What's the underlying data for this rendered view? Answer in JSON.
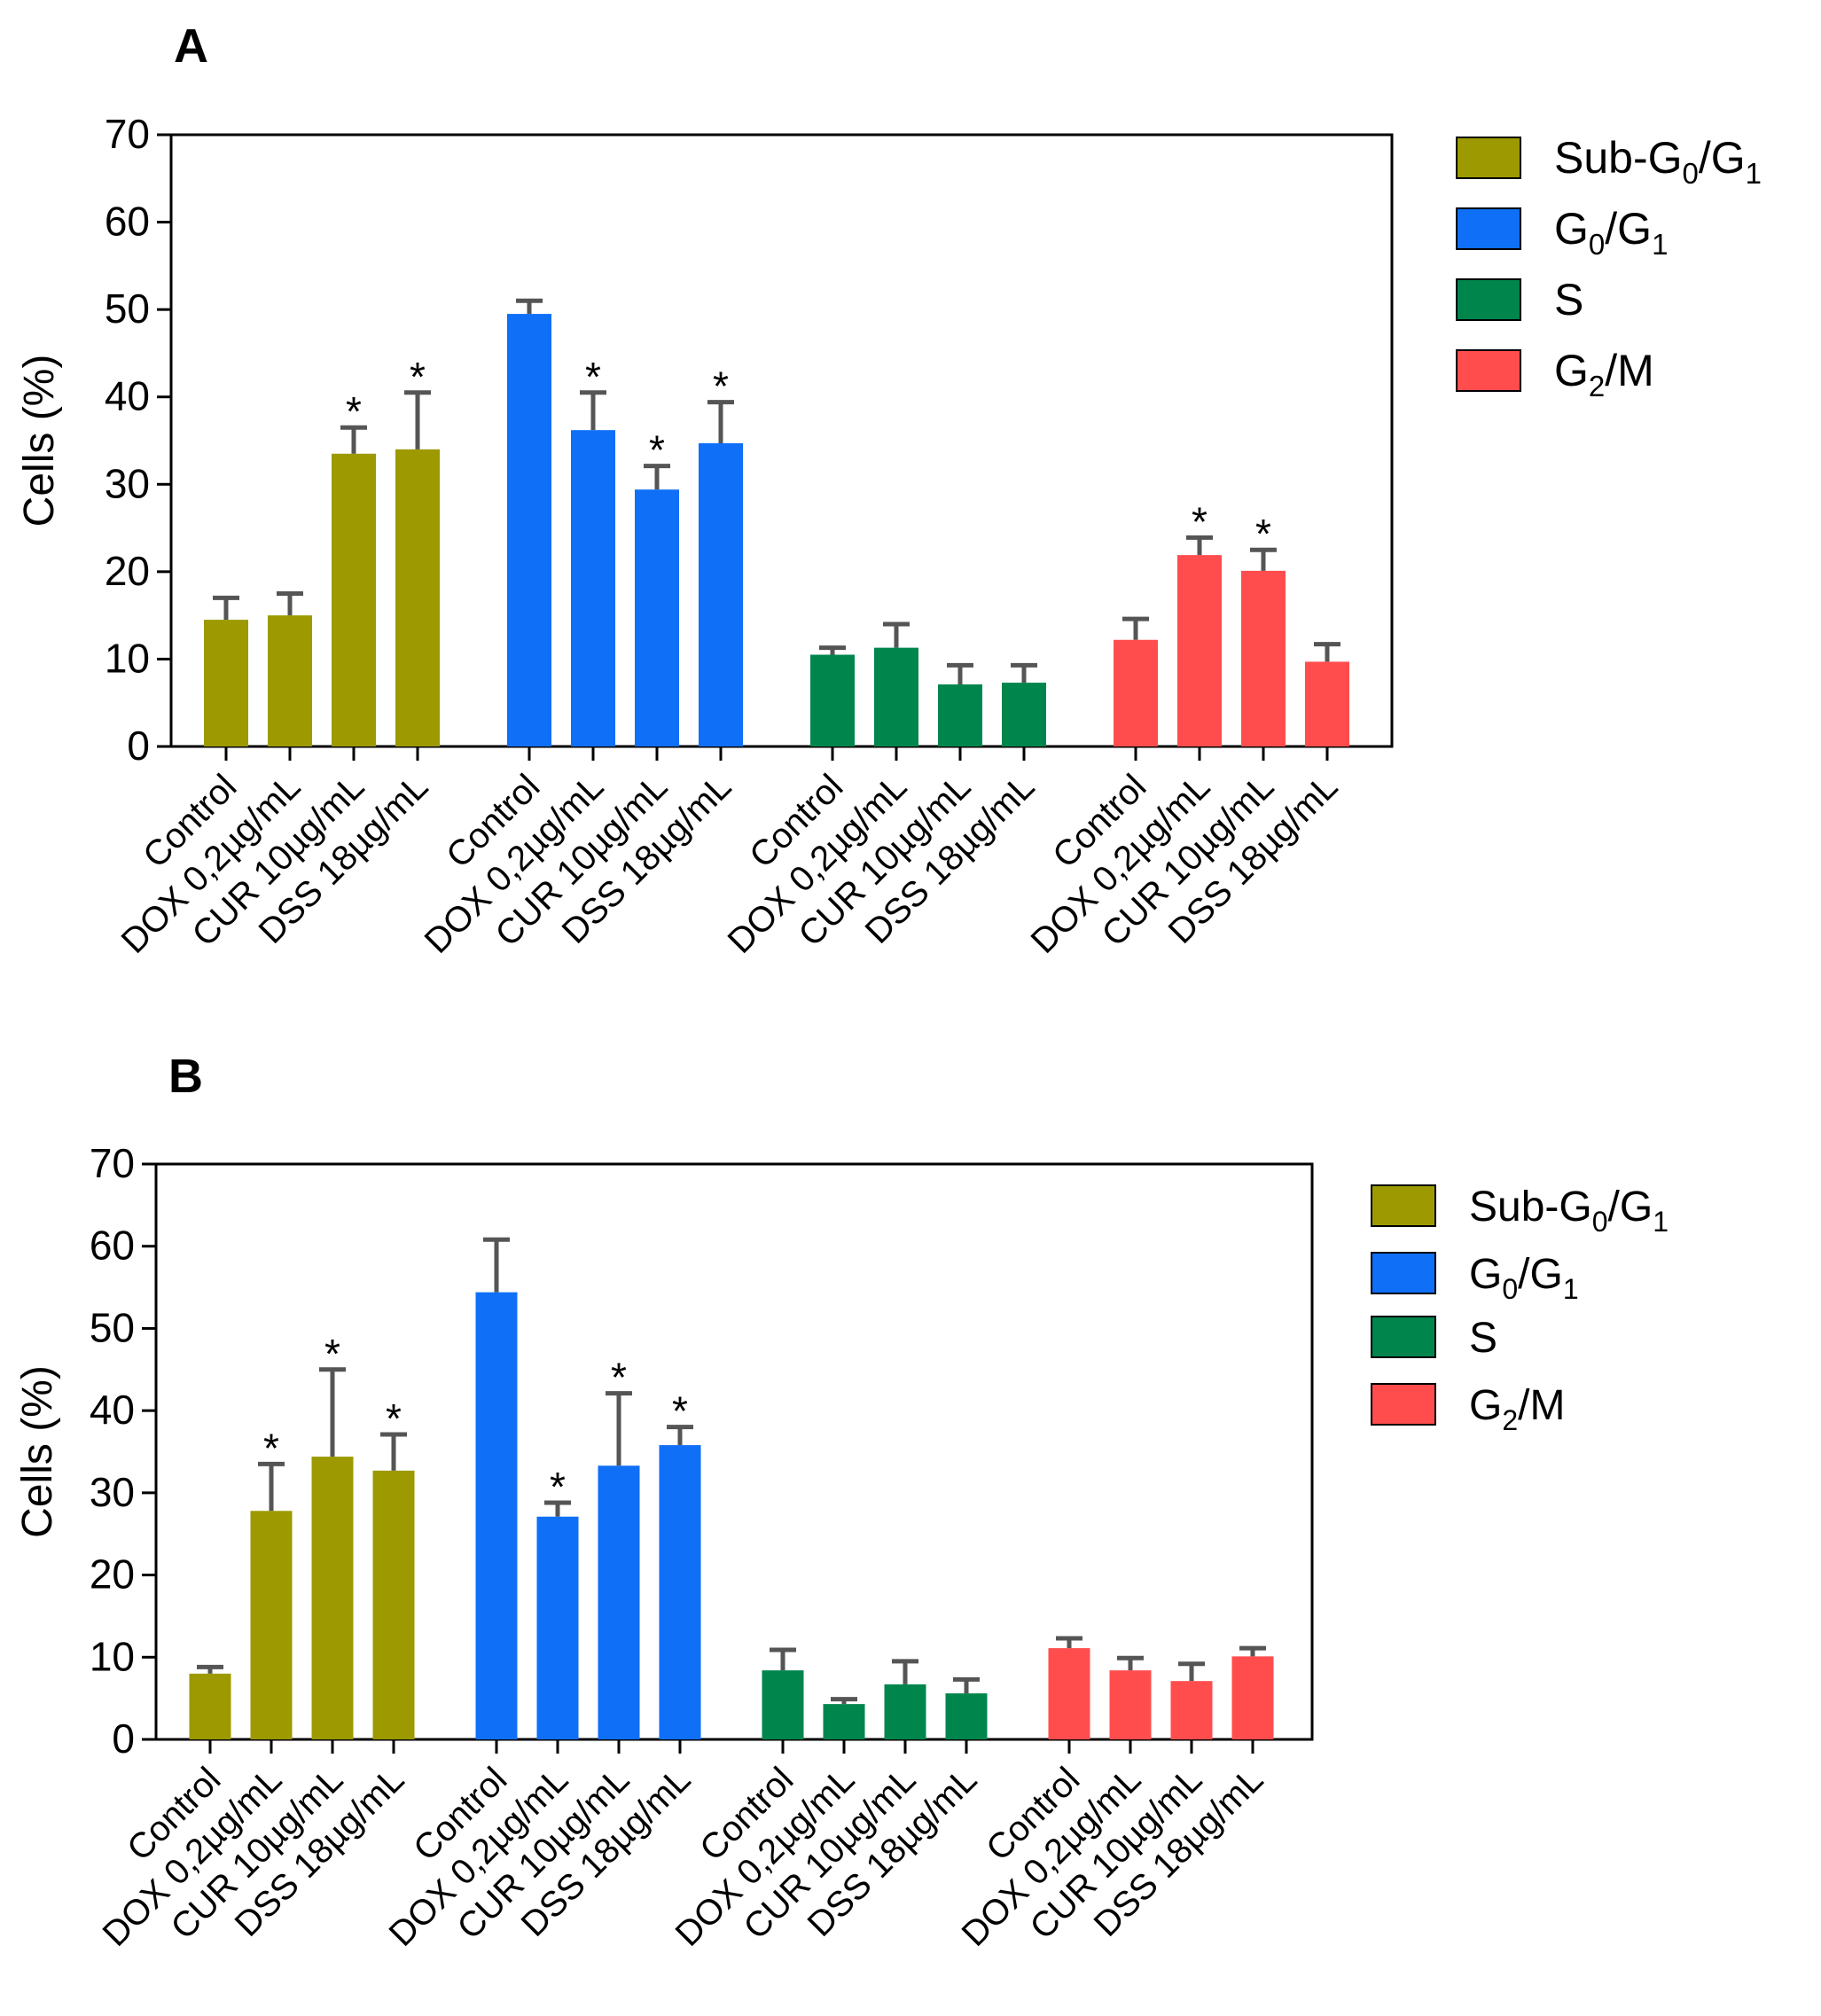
{
  "chart_data": [
    {
      "type": "bar",
      "panel_label": "A",
      "title": "",
      "xlabel": "",
      "ylabel": "Cells (%)",
      "ylim": [
        0,
        70
      ],
      "yticks": [
        0,
        10,
        20,
        30,
        40,
        50,
        60,
        70
      ],
      "grid": false,
      "legend_position": "right",
      "categories": [
        "Control",
        "DOX 0,2µg/mL",
        "CUR 10µg/mL",
        "DSS 18µg/mL"
      ],
      "series": [
        {
          "name": "Sub-G0/G1",
          "label_main": "Sub-G",
          "sub0": "0",
          "label_slash": "/G",
          "sub1": "1",
          "color": "#9c9a00",
          "values": [
            14.5,
            15.0,
            33.5,
            34.0
          ],
          "errors": [
            2.5,
            2.5,
            3.0,
            6.5
          ],
          "significant": [
            false,
            false,
            true,
            true
          ]
        },
        {
          "name": "G0/G1",
          "label_main": "G",
          "sub0": "0",
          "label_slash": "/G",
          "sub1": "1",
          "color": "#0f6ff7",
          "values": [
            49.5,
            36.2,
            29.4,
            34.7
          ],
          "errors": [
            1.5,
            4.3,
            2.7,
            4.7
          ],
          "significant": [
            false,
            true,
            true,
            true
          ]
        },
        {
          "name": "S",
          "label_main": "S",
          "sub0": "",
          "label_slash": "",
          "sub1": "",
          "color": "#00864d",
          "values": [
            10.5,
            11.3,
            7.1,
            7.3
          ],
          "errors": [
            0.8,
            2.7,
            2.2,
            2.0
          ],
          "significant": [
            false,
            false,
            false,
            false
          ]
        },
        {
          "name": "G2/M",
          "label_main": "G",
          "sub0": "2",
          "label_slash": "/M",
          "sub1": "",
          "color": "#ff4d4d",
          "values": [
            12.2,
            21.9,
            20.1,
            9.7
          ],
          "errors": [
            2.4,
            2.0,
            2.4,
            2.0
          ],
          "significant": [
            false,
            true,
            true,
            false
          ]
        }
      ],
      "significance_marker": "*"
    },
    {
      "type": "bar",
      "panel_label": "B",
      "title": "",
      "xlabel": "",
      "ylabel": "Cells (%)",
      "ylim": [
        0,
        70
      ],
      "yticks": [
        0,
        10,
        20,
        30,
        40,
        50,
        60,
        70
      ],
      "grid": false,
      "legend_position": "right",
      "categories": [
        "Control",
        "DOX 0,2µg/mL",
        "CUR 10µg/mL",
        "DSS 18µg/mL"
      ],
      "series": [
        {
          "name": "Sub-G0/G1",
          "label_main": "Sub-G",
          "sub0": "0",
          "label_slash": "/G",
          "sub1": "1",
          "color": "#9c9a00",
          "values": [
            8.0,
            27.8,
            34.4,
            32.7
          ],
          "errors": [
            0.8,
            5.7,
            10.6,
            4.4
          ],
          "significant": [
            false,
            true,
            true,
            true
          ]
        },
        {
          "name": "G0/G1",
          "label_main": "G",
          "sub0": "0",
          "label_slash": "/G",
          "sub1": "1",
          "color": "#0f6ff7",
          "values": [
            54.4,
            27.1,
            33.3,
            35.8
          ],
          "errors": [
            6.4,
            1.7,
            8.8,
            2.2
          ],
          "significant": [
            false,
            true,
            true,
            true
          ]
        },
        {
          "name": "S",
          "label_main": "S",
          "sub0": "",
          "label_slash": "",
          "sub1": "",
          "color": "#00864d",
          "values": [
            8.4,
            4.3,
            6.7,
            5.6
          ],
          "errors": [
            2.5,
            0.6,
            2.8,
            1.7
          ],
          "significant": [
            false,
            false,
            false,
            false
          ]
        },
        {
          "name": "G2/M",
          "label_main": "G",
          "sub0": "2",
          "label_slash": "/M",
          "sub1": "",
          "color": "#ff4d4d",
          "values": [
            11.1,
            8.4,
            7.1,
            10.1
          ],
          "errors": [
            1.2,
            1.5,
            2.1,
            1.0
          ],
          "significant": [
            false,
            false,
            false,
            false
          ]
        }
      ],
      "significance_marker": "*"
    }
  ]
}
